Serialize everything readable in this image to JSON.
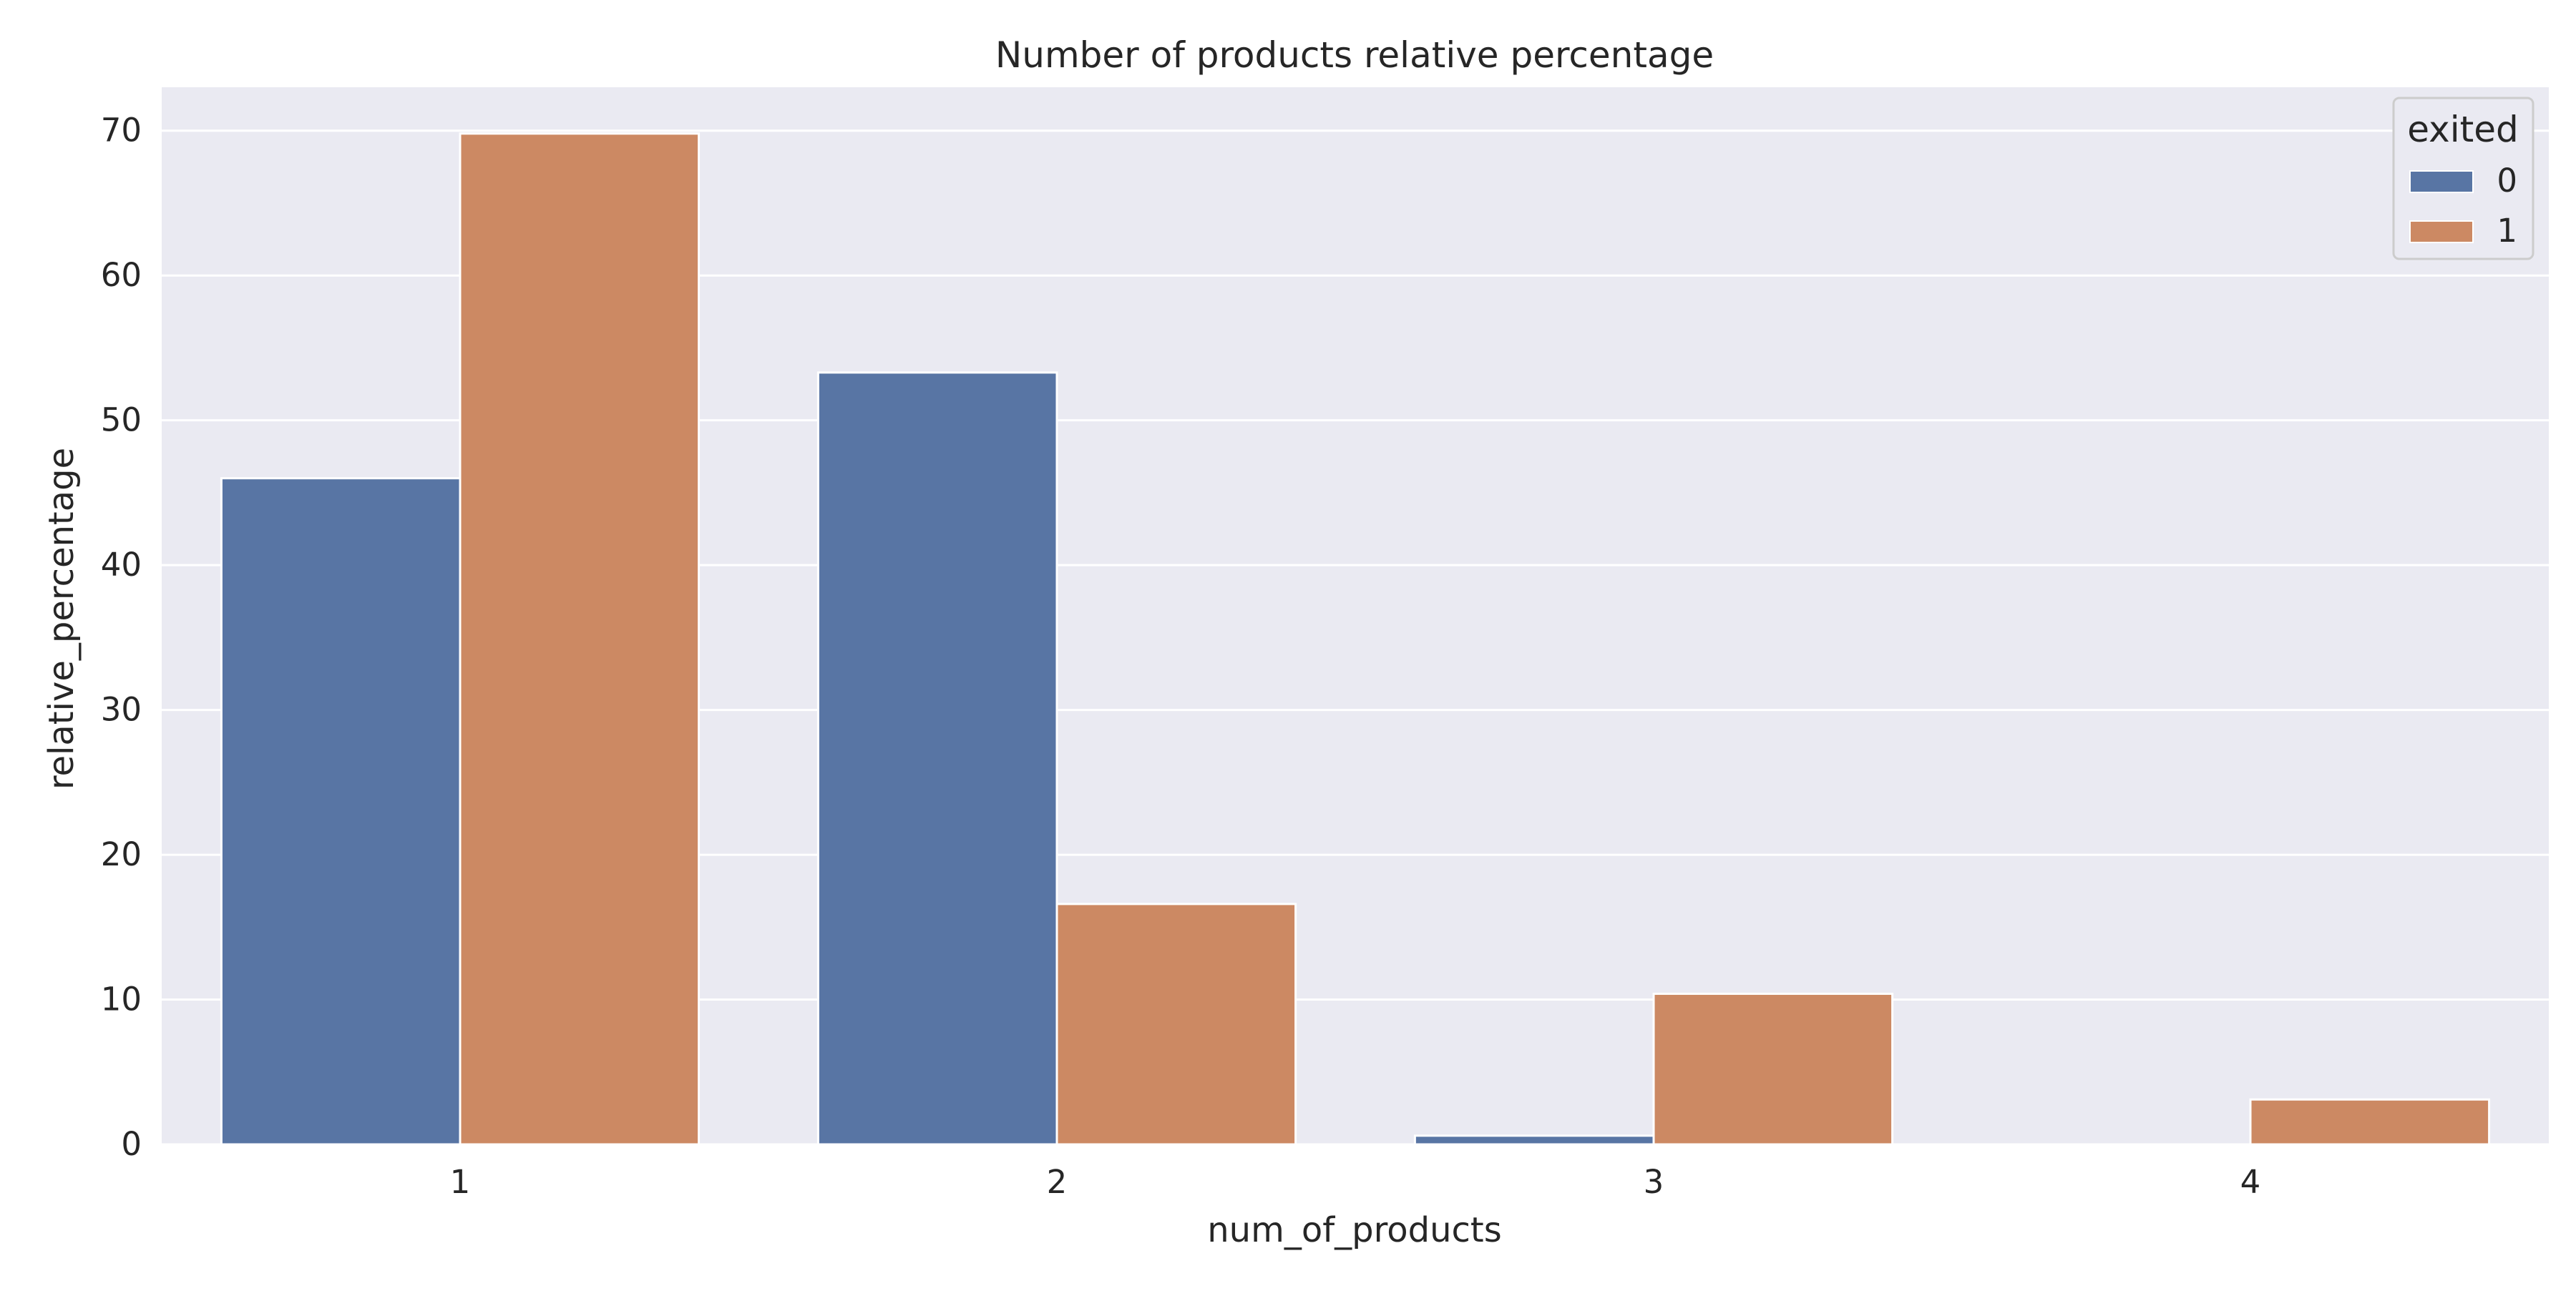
{
  "chart_data": {
    "type": "bar",
    "title": "Number of products relative percentage",
    "xlabel": "num_of_products",
    "ylabel": "relative_percentage",
    "categories": [
      "1",
      "2",
      "3",
      "4"
    ],
    "series": [
      {
        "name": "0",
        "values": [
          46.0,
          53.3,
          0.6,
          0.0
        ],
        "color": "#5875a4"
      },
      {
        "name": "1",
        "values": [
          69.8,
          16.6,
          10.4,
          3.1
        ],
        "color": "#cc8963"
      }
    ],
    "ylim": [
      0,
      73
    ],
    "yticks": [
      0,
      10,
      20,
      30,
      40,
      50,
      60,
      70
    ],
    "grid": true,
    "legend": {
      "title": "exited",
      "placement": "top-right"
    },
    "colors": {
      "background": "#eaeaf2",
      "grid": "#ffffff",
      "bar_edge": "#ffffff"
    }
  }
}
